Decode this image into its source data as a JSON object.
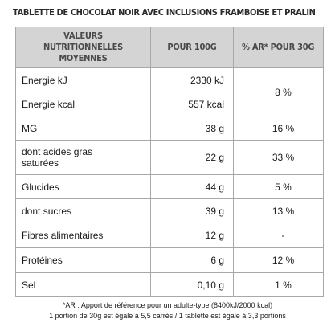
{
  "title": "TABLETTE DE CHOCOLAT NOIR AVEC INCLUSIONS FRAMBOISE ET PRALIN",
  "table": {
    "headers": {
      "col1_line1": "VALEURS NUTRITIONNELLES",
      "col1_line2": "MOYENNES",
      "col2": "POUR 100G",
      "col3": "% AR* POUR 30G"
    },
    "rows": [
      {
        "label": "Energie kJ",
        "per100g": "2330 kJ",
        "ar": "8 %"
      },
      {
        "label": "Energie kcal",
        "per100g": "557 kcal",
        "ar": "8 %"
      },
      {
        "label": "MG",
        "per100g": "38 g",
        "ar": "16 %"
      },
      {
        "label_line1": "dont acides gras",
        "label_line2": "saturées",
        "per100g": "22 g",
        "ar": "33 %"
      },
      {
        "label": "Glucides",
        "per100g": "44 g",
        "ar": "5 %"
      },
      {
        "label": "dont sucres",
        "per100g": "39 g",
        "ar": "13 %"
      },
      {
        "label": "Fibres alimentaires",
        "per100g": "12 g",
        "ar": "-"
      },
      {
        "label": "Protéines",
        "per100g": "6 g",
        "ar": "12 %"
      },
      {
        "label": "Sel",
        "per100g": "0,10 g",
        "ar": "1 %"
      }
    ]
  },
  "footnotes": {
    "line1": "*AR : Apport de référence pour un adulte-type (8400kJ/2000 kcal)",
    "line2": "1 portion de 30g est égale à 5,5 carrés / 1 tablette est égale à 3,3 portions"
  },
  "colors": {
    "header_bg": "#d4d4d4",
    "border": "#a8a8a8",
    "header_text": "#4a4a4a",
    "body_text": "#1a1a1a"
  }
}
